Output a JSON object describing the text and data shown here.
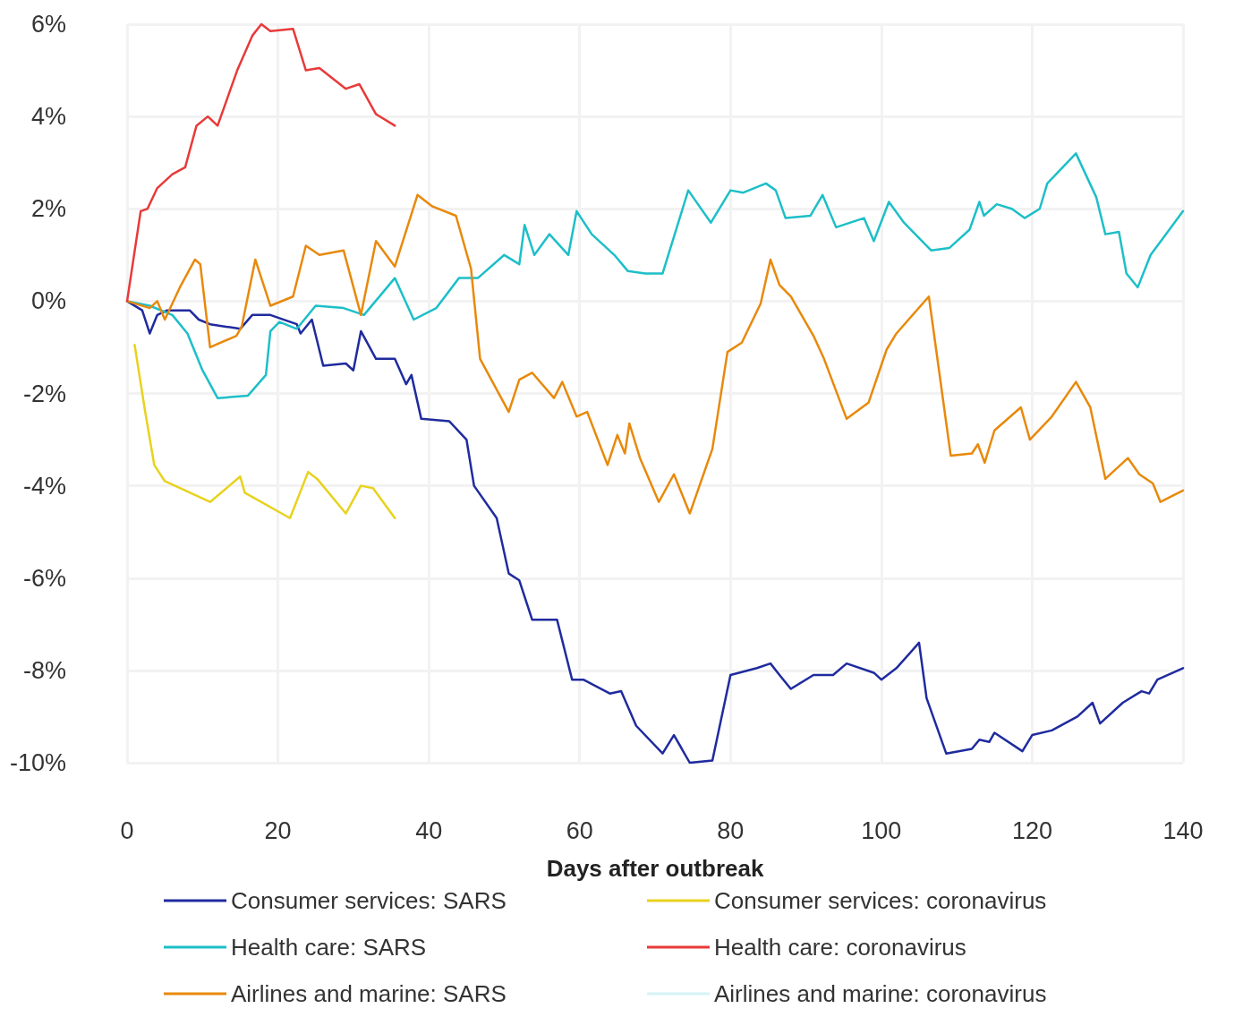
{
  "chart_data": {
    "type": "line",
    "xlabel": "Days after outbreak",
    "xlim": [
      0,
      140
    ],
    "xticks": [
      0,
      20,
      40,
      60,
      80,
      100,
      120,
      140
    ],
    "ylim": [
      -10,
      6
    ],
    "yticks": [
      {
        "value": -10,
        "label": "-10%"
      },
      {
        "value": -8,
        "label": "-8%"
      },
      {
        "value": -6,
        "label": "-6%"
      },
      {
        "value": -4,
        "label": "-4%"
      },
      {
        "value": -2,
        "label": "-2%"
      },
      {
        "value": 0,
        "label": "0%"
      },
      {
        "value": 2,
        "label": "2%"
      },
      {
        "value": 4,
        "label": "4%"
      },
      {
        "value": 6,
        "label": "6%"
      }
    ],
    "grid": true,
    "legend": "bottom",
    "marker": "none",
    "line_style": "solid",
    "series": [
      {
        "name": "Consumer services: SARS",
        "color": "#1f2b9e",
        "x": [
          0,
          2,
          3,
          4,
          5.3,
          8.3,
          9.5,
          11,
          15,
          16.6,
          19,
          22.5,
          23,
          24.5,
          26,
          29,
          30,
          31,
          33,
          35.5,
          37,
          37.7,
          39,
          42.7,
          45,
          46,
          49,
          50.6,
          52,
          53.7,
          57,
          59,
          60.5,
          64,
          65.5,
          67.5,
          71,
          72.5,
          74.6,
          77.6,
          80,
          83.5,
          85.3,
          86.5,
          88,
          91,
          93.6,
          95.4,
          99,
          100,
          102,
          105,
          106,
          108.6,
          112,
          113,
          114.3,
          115,
          118.7,
          120,
          122.6,
          126,
          128,
          129,
          132,
          134.5,
          135.5,
          136.6,
          140
        ],
        "values": [
          0,
          -0.2,
          -0.7,
          -0.3,
          -0.2,
          -0.2,
          -0.4,
          -0.5,
          -0.6,
          -0.3,
          -0.3,
          -0.5,
          -0.7,
          -0.4,
          -1.4,
          -1.35,
          -1.5,
          -0.65,
          -1.25,
          -1.25,
          -1.8,
          -1.6,
          -2.55,
          -2.6,
          -3.0,
          -4.0,
          -4.7,
          -5.9,
          -6.05,
          -6.9,
          -6.9,
          -8.2,
          -8.2,
          -8.5,
          -8.45,
          -9.2,
          -9.8,
          -9.4,
          -10.0,
          -9.95,
          -8.1,
          -7.95,
          -7.85,
          -8.1,
          -8.4,
          -8.1,
          -8.1,
          -7.85,
          -8.05,
          -8.2,
          -7.95,
          -7.4,
          -8.6,
          -9.8,
          -9.7,
          -9.5,
          -9.55,
          -9.35,
          -9.75,
          -9.4,
          -9.3,
          -9.0,
          -8.7,
          -9.15,
          -8.7,
          -8.45,
          -8.5,
          -8.2,
          -7.95
        ]
      },
      {
        "name": "Health care: SARS",
        "color": "#1dbfc8",
        "x": [
          0,
          3,
          6,
          8,
          10,
          12,
          16,
          18.4,
          19,
          20.2,
          22.5,
          25,
          28.7,
          31.4,
          35.5,
          38,
          41,
          44,
          46.5,
          50,
          52,
          52.7,
          54,
          56,
          58.5,
          59.6,
          61.6,
          64.6,
          66.4,
          68.7,
          71,
          74.4,
          77.4,
          80,
          81.7,
          84.7,
          86,
          87.3,
          90.6,
          92.2,
          94,
          97.7,
          99,
          101,
          103,
          106.6,
          109,
          111.7,
          113,
          113.6,
          115.3,
          117.3,
          119,
          121,
          122,
          125.8,
          128.5,
          129.7,
          131.5,
          132.5,
          134,
          135.7,
          140
        ],
        "values": [
          0,
          -0.1,
          -0.3,
          -0.7,
          -1.5,
          -2.1,
          -2.05,
          -1.6,
          -0.65,
          -0.45,
          -0.6,
          -0.1,
          -0.15,
          -0.3,
          0.5,
          -0.4,
          -0.15,
          0.5,
          0.5,
          1.0,
          0.8,
          1.65,
          1.0,
          1.45,
          1.0,
          1.95,
          1.45,
          1.0,
          0.65,
          0.6,
          0.6,
          2.4,
          1.7,
          2.4,
          2.35,
          2.55,
          2.4,
          1.8,
          1.85,
          2.3,
          1.6,
          1.8,
          1.3,
          2.15,
          1.7,
          1.1,
          1.15,
          1.55,
          2.15,
          1.85,
          2.1,
          2.0,
          1.8,
          2.0,
          2.55,
          3.2,
          2.25,
          1.45,
          1.5,
          0.6,
          0.3,
          1.0,
          1.95
        ]
      },
      {
        "name": "Airlines and marine: SARS",
        "color": "#e8890c",
        "x": [
          0,
          3,
          4,
          5,
          7,
          9,
          9.7,
          11,
          14.5,
          15.2,
          17,
          19,
          22,
          23.7,
          25.5,
          28.7,
          31,
          33,
          35.5,
          38.5,
          40.5,
          43.6,
          45.6,
          46.8,
          50.6,
          52,
          53.7,
          56.6,
          57.7,
          59.6,
          61,
          63.7,
          65,
          66,
          66.6,
          68,
          70.5,
          72.5,
          74.6,
          77.6,
          79.6,
          81.5,
          84,
          85.3,
          86.5,
          88,
          91,
          92.4,
          95.4,
          98.3,
          100.7,
          102,
          106.3,
          109.2,
          112,
          112.8,
          113.7,
          115,
          118.5,
          119.7,
          122.6,
          125.8,
          127.7,
          129.7,
          132.7,
          134.2,
          136,
          137,
          140
        ],
        "values": [
          0,
          -0.15,
          0.0,
          -0.4,
          0.3,
          0.9,
          0.8,
          -1.0,
          -0.75,
          -0.55,
          0.9,
          -0.1,
          0.1,
          1.2,
          1.0,
          1.1,
          -0.3,
          1.3,
          0.75,
          2.3,
          2.05,
          1.85,
          0.7,
          -1.25,
          -2.4,
          -1.7,
          -1.55,
          -2.1,
          -1.75,
          -2.5,
          -2.4,
          -3.55,
          -2.9,
          -3.3,
          -2.65,
          -3.4,
          -4.35,
          -3.75,
          -4.6,
          -3.2,
          -1.1,
          -0.9,
          -0.05,
          0.9,
          0.35,
          0.1,
          -0.75,
          -1.25,
          -2.55,
          -2.2,
          -1.05,
          -0.7,
          0.1,
          -3.35,
          -3.3,
          -3.1,
          -3.5,
          -2.8,
          -2.3,
          -3.0,
          -2.5,
          -1.75,
          -2.3,
          -3.85,
          -3.4,
          -3.75,
          -3.95,
          -4.35,
          -4.1
        ]
      },
      {
        "name": "Consumer services: coronavirus",
        "color": "#e8d21e",
        "x": [
          1,
          2.4,
          3.6,
          5,
          7,
          11,
          15,
          15.6,
          21.6,
          24,
          25.2,
          29,
          31,
          32.6,
          35.5
        ],
        "values": [
          -0.95,
          -2.4,
          -3.55,
          -3.9,
          -4.05,
          -4.35,
          -3.8,
          -4.15,
          -4.7,
          -3.7,
          -3.85,
          -4.6,
          -4.0,
          -4.05,
          -4.7
        ]
      },
      {
        "name": "Health care: coronavirus",
        "color": "#e83a3a",
        "x": [
          0,
          1.8,
          2.7,
          4,
          6,
          7.7,
          9.2,
          10.7,
          12,
          14.6,
          16.6,
          17.8,
          19,
          22,
          23.7,
          25.5,
          29,
          30.8,
          33,
          35.5
        ],
        "values": [
          0,
          1.95,
          2.0,
          2.45,
          2.75,
          2.9,
          3.8,
          4.0,
          3.8,
          5.0,
          5.75,
          6.0,
          5.85,
          5.9,
          5.0,
          5.05,
          4.6,
          4.7,
          4.05,
          3.8
        ]
      },
      {
        "name": "Airlines and marine: coronavirus",
        "color": "#d4f3f7"
      }
    ]
  }
}
